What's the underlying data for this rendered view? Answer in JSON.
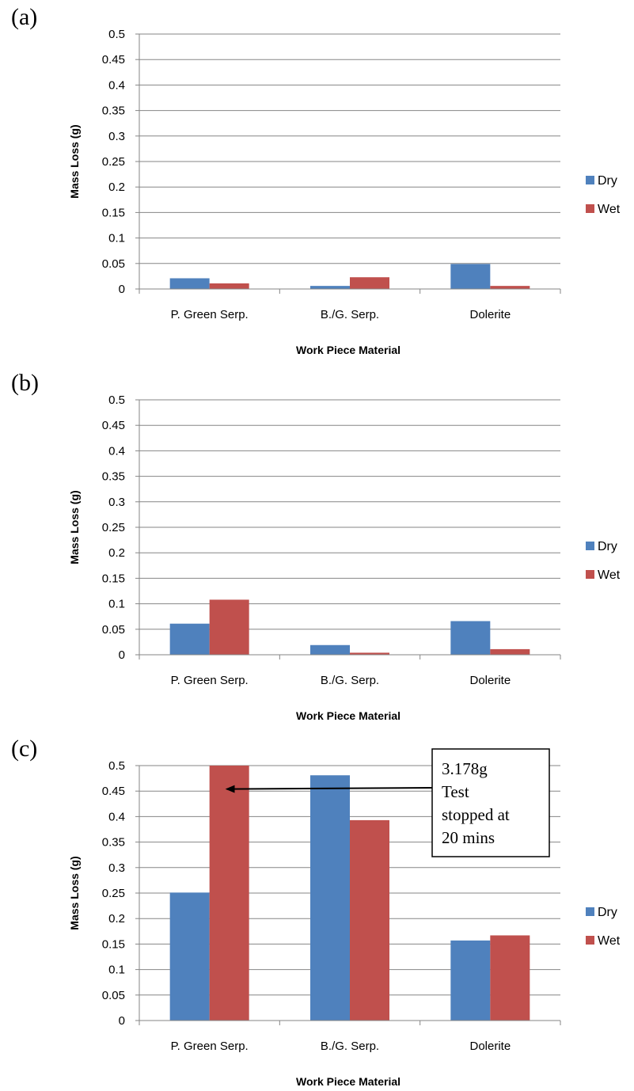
{
  "colors": {
    "Dry": "#4f81bd",
    "Wet": "#c0504d",
    "grid": "#868686",
    "axis": "#868686"
  },
  "chart_data": [
    {
      "type": "bar",
      "panel_label": "(a)",
      "categories": [
        "P. Green Serp.",
        "B./G. Serp.",
        "Dolerite"
      ],
      "series": [
        {
          "name": "Dry",
          "values": [
            0.021,
            0.006,
            0.049
          ]
        },
        {
          "name": "Wet",
          "values": [
            0.011,
            0.023,
            0.006
          ]
        }
      ],
      "xlabel": "Work Piece Material",
      "ylabel": "Mass Loss (g)",
      "ylim": [
        0,
        0.5
      ],
      "yticks": [
        "0",
        "0.05",
        "0.1",
        "0.15",
        "0.2",
        "0.25",
        "0.3",
        "0.35",
        "0.4",
        "0.45",
        "0.5"
      ],
      "grid": true,
      "legend": "right"
    },
    {
      "type": "bar",
      "panel_label": "(b)",
      "categories": [
        "P. Green Serp.",
        "B./G. Serp.",
        "Dolerite"
      ],
      "series": [
        {
          "name": "Dry",
          "values": [
            0.061,
            0.019,
            0.066
          ]
        },
        {
          "name": "Wet",
          "values": [
            0.108,
            0.004,
            0.011
          ]
        }
      ],
      "xlabel": "Work Piece Material",
      "ylabel": "Mass Loss (g)",
      "ylim": [
        0,
        0.5
      ],
      "yticks": [
        "0",
        "0.05",
        "0.1",
        "0.15",
        "0.2",
        "0.25",
        "0.3",
        "0.35",
        "0.4",
        "0.45",
        "0.5"
      ],
      "grid": true,
      "legend": "right"
    },
    {
      "type": "bar",
      "panel_label": "(c)",
      "categories": [
        "P. Green Serp.",
        "B./G. Serp.",
        "Dolerite"
      ],
      "series": [
        {
          "name": "Dry",
          "values": [
            0.251,
            0.481,
            0.157
          ]
        },
        {
          "name": "Wet",
          "values": [
            0.5,
            0.393,
            0.167
          ]
        }
      ],
      "xlabel": "Work Piece Material",
      "ylabel": "Mass Loss (g)",
      "ylim": [
        0,
        0.5
      ],
      "yticks": [
        "0",
        "0.05",
        "0.1",
        "0.15",
        "0.2",
        "0.25",
        "0.3",
        "0.35",
        "0.4",
        "0.45",
        "0.5"
      ],
      "grid": true,
      "legend": "right",
      "annotation": {
        "lines": [
          "3.178g",
          "Test",
          "stopped at",
          "20 mins"
        ],
        "points_to": "P. Green Serp. Wet"
      }
    }
  ]
}
